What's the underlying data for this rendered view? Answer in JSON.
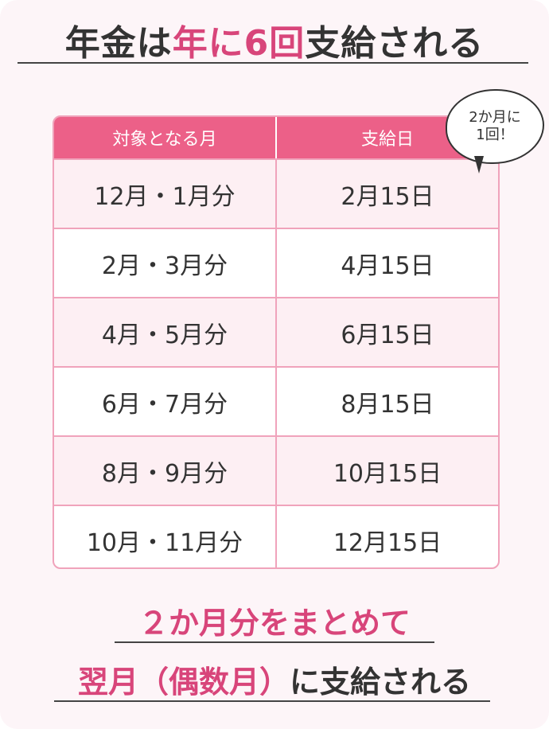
{
  "title": {
    "part1": "年金は",
    "part2": "年に6回",
    "part3": "支給される"
  },
  "table": {
    "headers": [
      "対象となる月",
      "支給日"
    ],
    "rows": [
      {
        "months": "12月・1月分",
        "date": "2月15日"
      },
      {
        "months": "2月・3月分",
        "date": "4月15日"
      },
      {
        "months": "4月・5月分",
        "date": "6月15日"
      },
      {
        "months": "6月・7月分",
        "date": "8月15日"
      },
      {
        "months": "8月・9月分",
        "date": "10月15日"
      },
      {
        "months": "10月・11月分",
        "date": "12月15日"
      }
    ]
  },
  "bubble": {
    "text": "2か月に\n1回！"
  },
  "footer": {
    "line1": "２か月分をまとめて",
    "line2_highlight": "翌月（偶数月）",
    "line2_rest": "に支給される"
  },
  "colors": {
    "accent": "#d8457a",
    "header": "#ec6088",
    "border": "#f0a3bb",
    "background": "#fdf5f8"
  }
}
